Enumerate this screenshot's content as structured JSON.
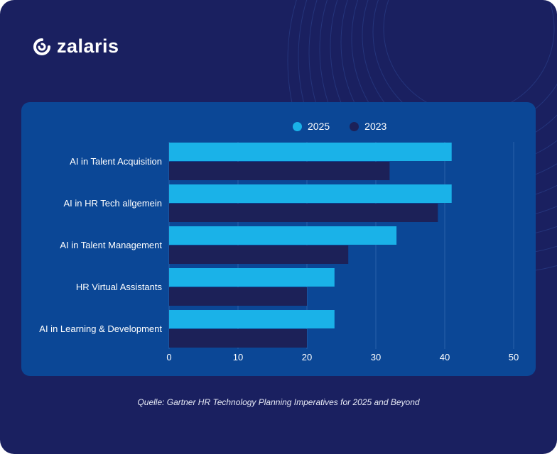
{
  "brand": {
    "name": "zalaris"
  },
  "source_note": "Quelle: Gartner HR Technology Planning Imperatives for 2025 and Beyond",
  "colors": {
    "background": "#1a2060",
    "panel": "#0b4796",
    "series_2025": "#1ab2e8",
    "series_2023": "#1c2158"
  },
  "chart_data": {
    "type": "bar",
    "orientation": "horizontal",
    "categories": [
      "AI in Talent Acquisition",
      "AI in HR Tech allgemein",
      "AI in Talent Management",
      "HR Virtual Assistants",
      "AI in Learning & Development"
    ],
    "series": [
      {
        "name": "2025",
        "values": [
          41,
          41,
          33,
          24,
          24
        ]
      },
      {
        "name": "2023",
        "values": [
          32,
          39,
          26,
          20,
          20
        ]
      }
    ],
    "xlim": [
      0,
      50
    ],
    "xticks": [
      "0",
      "10",
      "20",
      "30",
      "40",
      "50"
    ],
    "legend": "top-center",
    "grid": "vertical"
  }
}
